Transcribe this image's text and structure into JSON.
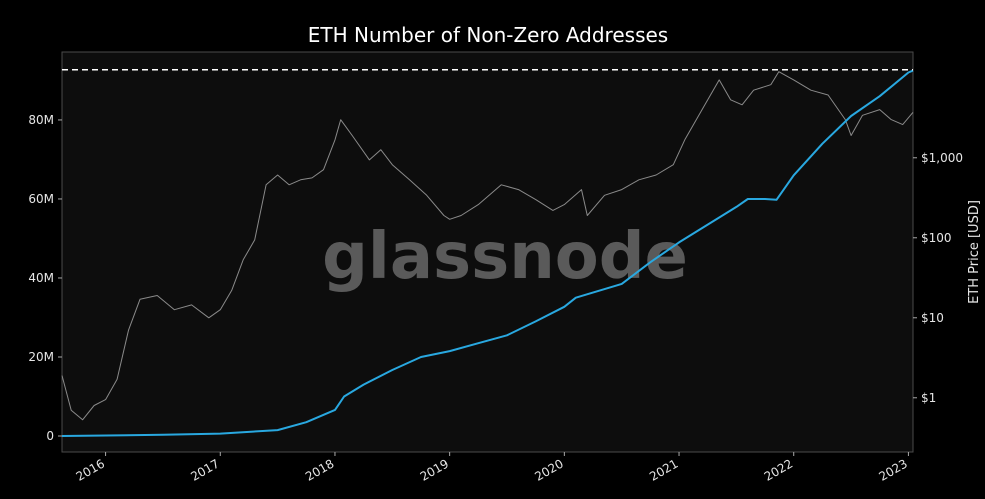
{
  "chart_data": {
    "type": "line",
    "title": "ETH Number of Non-Zero Addresses",
    "y2label": "ETH Price [USD]",
    "watermark": "glassnode",
    "xlim": [
      2015.62,
      2023.04
    ],
    "xticks": [
      2016,
      2017,
      2018,
      2019,
      2020,
      2021,
      2022,
      2023
    ],
    "ylim": [
      -4050000,
      97200000
    ],
    "yticks": [
      {
        "value": 0,
        "label": "0"
      },
      {
        "value": 20000000,
        "label": "20M"
      },
      {
        "value": 40000000,
        "label": "40M"
      },
      {
        "value": 60000000,
        "label": "60M"
      },
      {
        "value": 80000000,
        "label": "80M"
      }
    ],
    "y2lim": [
      0.21,
      21000
    ],
    "y2scale": "log",
    "y2ticks": [
      {
        "value": 1,
        "label": "$1"
      },
      {
        "value": 10,
        "label": "$10"
      },
      {
        "value": 100,
        "label": "$100"
      },
      {
        "value": 1000,
        "label": "$1,000"
      }
    ],
    "reference_line": 92700000,
    "series": [
      {
        "color": "#8a8a8a",
        "axis": "y2",
        "x": [
          2015.62,
          2015.7,
          2015.8,
          2015.9,
          2016.0,
          2016.1,
          2016.2,
          2016.3,
          2016.45,
          2016.6,
          2016.75,
          2016.9,
          2017.0,
          2017.1,
          2017.2,
          2017.3,
          2017.4,
          2017.5,
          2017.6,
          2017.7,
          2017.8,
          2017.9,
          2018.0,
          2018.05,
          2018.15,
          2018.3,
          2018.4,
          2018.5,
          2018.65,
          2018.8,
          2018.95,
          2019.0,
          2019.1,
          2019.25,
          2019.45,
          2019.6,
          2019.75,
          2019.9,
          2020.0,
          2020.15,
          2020.2,
          2020.35,
          2020.5,
          2020.65,
          2020.8,
          2020.95,
          2021.05,
          2021.2,
          2021.35,
          2021.45,
          2021.55,
          2021.65,
          2021.8,
          2021.87,
          2022.0,
          2022.15,
          2022.3,
          2022.45,
          2022.5,
          2022.6,
          2022.75,
          2022.85,
          2022.95,
          2023.04
        ],
        "values": [
          1.9,
          0.7,
          0.53,
          0.8,
          0.95,
          1.7,
          7,
          17,
          19,
          12.6,
          14.5,
          10,
          12.6,
          22,
          53,
          94,
          460,
          610,
          460,
          530,
          560,
          710,
          1680,
          2990,
          1900,
          940,
          1260,
          820,
          530,
          340,
          190,
          170,
          190,
          260,
          460,
          400,
          300,
          220,
          260,
          400,
          190,
          340,
          400,
          530,
          610,
          820,
          1680,
          3990,
          9400,
          5300,
          4600,
          7000,
          8200,
          11900,
          9400,
          7000,
          6100,
          3000,
          1900,
          3400,
          4000,
          3000,
          2600,
          3700
        ]
      },
      {
        "color": "#29a8e0",
        "axis": "y",
        "x": [
          2015.62,
          2016.5,
          2017.0,
          2017.5,
          2017.75,
          2018.0,
          2018.08,
          2018.25,
          2018.5,
          2018.75,
          2019.0,
          2019.25,
          2019.5,
          2019.75,
          2020.0,
          2020.1,
          2020.5,
          2020.75,
          2021.0,
          2021.25,
          2021.5,
          2021.6,
          2021.75,
          2021.85,
          2022.0,
          2022.25,
          2022.5,
          2022.75,
          2023.0,
          2023.04
        ],
        "values": [
          0,
          300000,
          600000,
          1500000,
          3500000,
          6600000,
          10000000,
          13000000,
          16700000,
          20000000,
          21500000,
          23500000,
          25500000,
          29000000,
          32700000,
          35000000,
          38500000,
          44000000,
          49000000,
          53500000,
          58000000,
          60000000,
          60000000,
          59800000,
          66000000,
          74000000,
          81000000,
          86000000,
          92000000,
          92500000
        ]
      }
    ]
  }
}
